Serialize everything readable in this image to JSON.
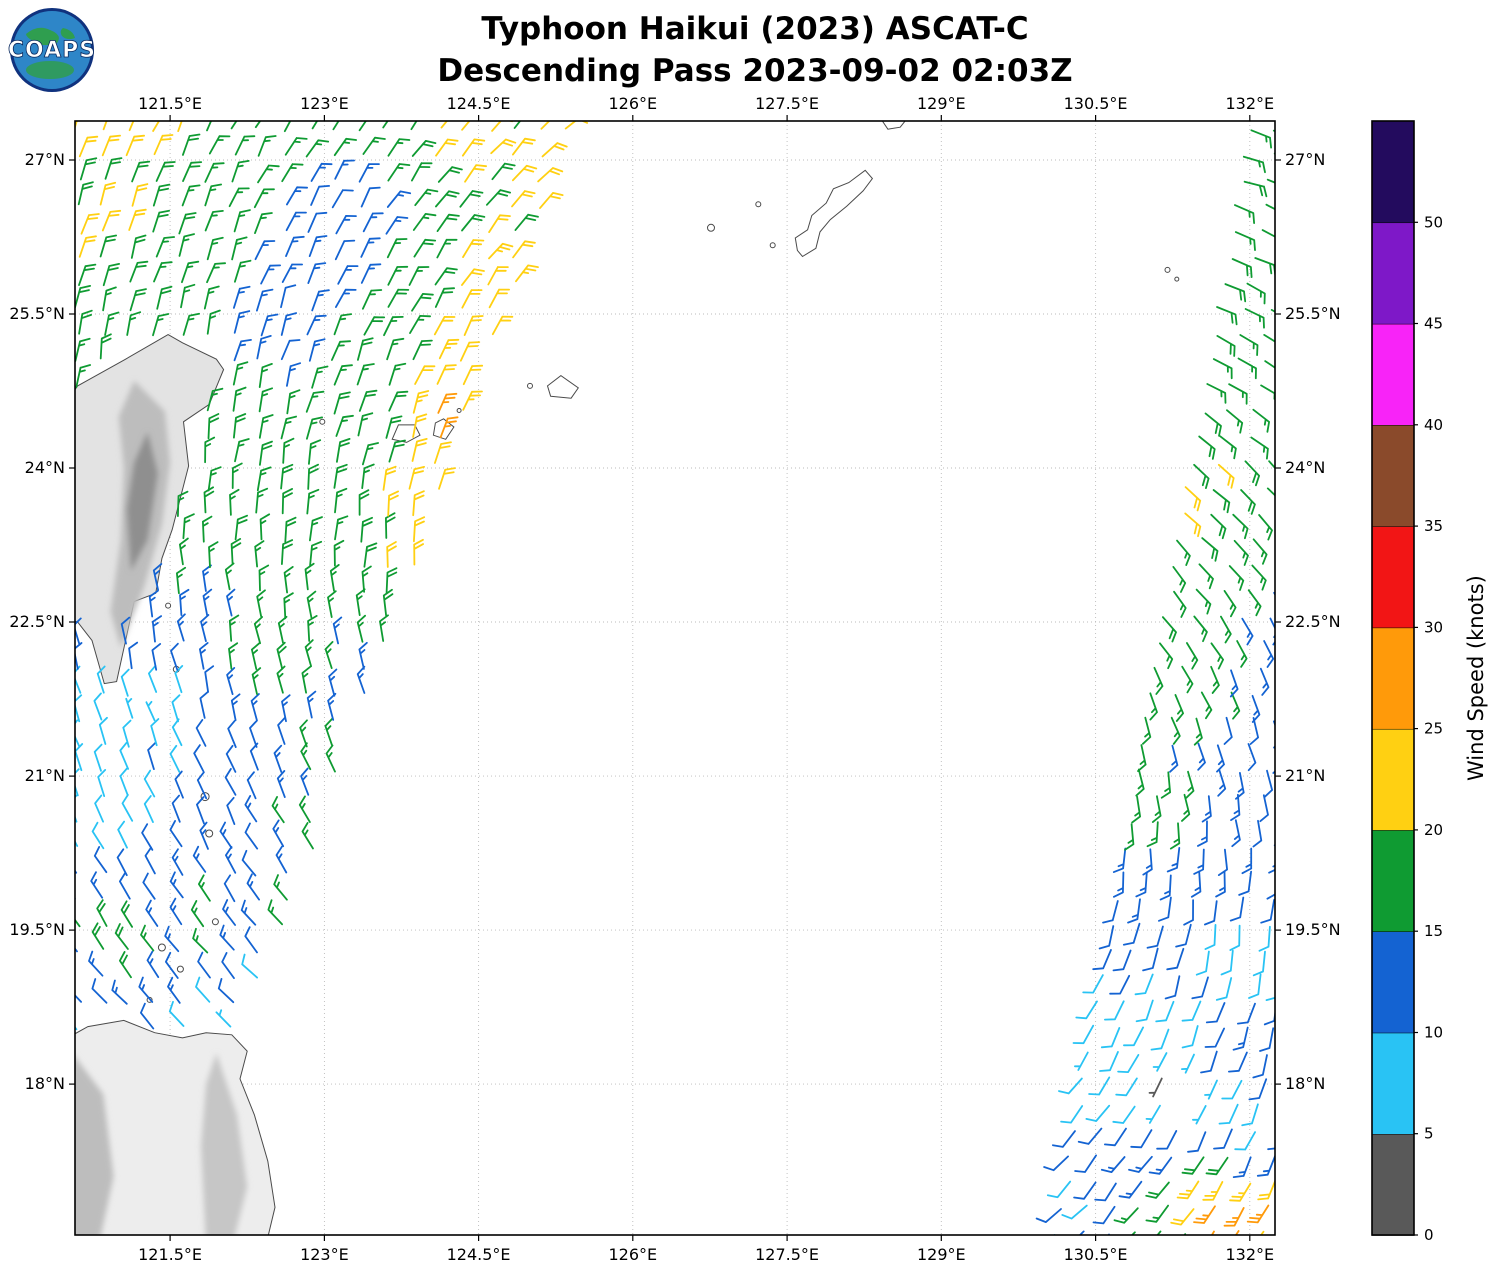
{
  "header": {
    "title_line1": "Typhoon Haikui (2023) ASCAT-C",
    "title_line2": "Descending Pass 2023-09-02 02:03Z"
  },
  "logo": {
    "text": "COAPS"
  },
  "map": {
    "extent": {
      "lon_min": 120.575,
      "lon_max": 132.245,
      "lat_min": 16.53,
      "lat_max": 27.38
    },
    "x_ticks": [
      {
        "lon": 121.5,
        "label": "121.5°E"
      },
      {
        "lon": 123.0,
        "label": "123°E"
      },
      {
        "lon": 124.5,
        "label": "124.5°E"
      },
      {
        "lon": 126.0,
        "label": "126°E"
      },
      {
        "lon": 127.5,
        "label": "127.5°E"
      },
      {
        "lon": 129.0,
        "label": "129°E"
      },
      {
        "lon": 130.5,
        "label": "130.5°E"
      },
      {
        "lon": 132.0,
        "label": "132°E"
      }
    ],
    "y_ticks": [
      {
        "lat": 27.0,
        "label": "27°N"
      },
      {
        "lat": 25.5,
        "label": "25.5°N"
      },
      {
        "lat": 24.0,
        "label": "24°N"
      },
      {
        "lat": 22.5,
        "label": "22.5°N"
      },
      {
        "lat": 21.0,
        "label": "21°N"
      },
      {
        "lat": 19.5,
        "label": "19.5°N"
      },
      {
        "lat": 18.0,
        "label": "18°N"
      }
    ],
    "grid_style": "dotted"
  },
  "colorbar": {
    "title": "Wind Speed (knots)",
    "tick_labels": [
      "0",
      "5",
      "10",
      "15",
      "20",
      "25",
      "30",
      "35",
      "40",
      "45",
      "50"
    ],
    "tick_values": [
      0,
      5,
      10,
      15,
      20,
      25,
      30,
      35,
      40,
      45,
      50
    ],
    "bounds": [
      0,
      5,
      10,
      15,
      20,
      25,
      30,
      35,
      40,
      45,
      50,
      55
    ],
    "colors": [
      "#595959",
      "#29c3f4",
      "#1463d2",
      "#0f9b32",
      "#ffd012",
      "#ff9a0a",
      "#f21515",
      "#8a4a2b",
      "#f823f8",
      "#7e18c8",
      "#230b5e"
    ]
  },
  "chart_data": {
    "type": "wind_barb_map",
    "instrument": "ASCAT-C",
    "pass_direction": "descending",
    "valid_time": "2023-09-02 02:03Z",
    "units": "knots",
    "grid_spacing_deg": 0.25,
    "barb_convention": "staff points toward wind source; full barb = 10 kt, half barb = 5 kt; color = speed",
    "cyclone": {
      "name": "Haikui",
      "center_lon": 127.8,
      "center_lat": 21.5,
      "rotation": "counterclockwise",
      "inflow_deg": 18
    },
    "swaths": [
      {
        "name": "west",
        "lat_min": 18.3,
        "lat_max": 27.35,
        "left_edge": {
          "base": 120.45,
          "slope": 0.0,
          "ref_lat": 19.5
        },
        "right_edge": {
          "base": 122.6,
          "slope": 0.36,
          "ref_lat": 19.5
        }
      },
      {
        "name": "east",
        "lat_min": 16.55,
        "lat_max": 27.3,
        "left_edge": {
          "base": 132.0,
          "slope": 0.175,
          "ref_lat": 27.2
        },
        "right_edge": {
          "base": 132.35,
          "slope": 0.0,
          "ref_lat": 27.2
        }
      }
    ],
    "speed_points": [
      [
        121.0,
        27.2,
        21
      ],
      [
        120.7,
        26.3,
        21
      ],
      [
        122.2,
        26.9,
        17
      ],
      [
        123.5,
        27.3,
        17
      ],
      [
        123.2,
        26.4,
        12
      ],
      [
        124.2,
        27.25,
        21
      ],
      [
        125.1,
        27.0,
        21
      ],
      [
        123.9,
        26.1,
        17
      ],
      [
        124.6,
        25.7,
        22
      ],
      [
        121.4,
        25.7,
        17
      ],
      [
        122.6,
        25.2,
        13
      ],
      [
        123.6,
        25.1,
        17
      ],
      [
        124.25,
        24.9,
        22
      ],
      [
        124.3,
        24.35,
        26
      ],
      [
        122.3,
        24.4,
        17
      ],
      [
        123.1,
        24.1,
        17
      ],
      [
        123.95,
        23.8,
        21
      ],
      [
        122.1,
        23.2,
        17
      ],
      [
        123.3,
        22.9,
        17
      ],
      [
        123.9,
        23.0,
        21
      ],
      [
        121.7,
        22.5,
        15
      ],
      [
        122.6,
        22.1,
        17
      ],
      [
        123.4,
        22.0,
        14
      ],
      [
        121.3,
        21.6,
        8
      ],
      [
        122.3,
        21.3,
        12
      ],
      [
        123.2,
        21.3,
        16
      ],
      [
        121.0,
        20.6,
        8
      ],
      [
        122.0,
        20.5,
        12
      ],
      [
        122.9,
        20.7,
        16
      ],
      [
        121.2,
        19.9,
        11
      ],
      [
        122.2,
        19.9,
        13
      ],
      [
        121.0,
        19.3,
        20
      ],
      [
        121.8,
        19.5,
        16
      ],
      [
        122.5,
        19.6,
        15
      ],
      [
        121.5,
        18.9,
        13
      ],
      [
        122.2,
        18.9,
        10
      ],
      [
        121.9,
        18.5,
        4
      ],
      [
        122.35,
        18.5,
        8
      ],
      [
        120.7,
        19.0,
        13
      ],
      [
        120.7,
        18.5,
        9
      ],
      [
        132.2,
        27.0,
        17
      ],
      [
        131.8,
        25.6,
        17
      ],
      [
        132.15,
        24.6,
        17
      ],
      [
        131.25,
        23.8,
        21
      ],
      [
        131.7,
        23.1,
        17
      ],
      [
        132.25,
        22.5,
        13
      ],
      [
        131.35,
        22.1,
        17
      ],
      [
        131.95,
        21.4,
        13
      ],
      [
        131.15,
        20.8,
        16
      ],
      [
        132.25,
        20.9,
        13
      ],
      [
        131.55,
        20.1,
        13
      ],
      [
        130.95,
        19.5,
        12
      ],
      [
        131.95,
        19.4,
        9
      ],
      [
        131.25,
        18.8,
        9
      ],
      [
        132.05,
        18.5,
        12
      ],
      [
        130.7,
        18.1,
        8
      ],
      [
        131.35,
        18.0,
        4
      ],
      [
        131.95,
        17.7,
        9
      ],
      [
        130.85,
        17.3,
        13
      ],
      [
        131.55,
        17.0,
        22
      ],
      [
        131.8,
        16.75,
        26
      ],
      [
        131.15,
        16.75,
        16
      ],
      [
        130.5,
        16.9,
        10
      ]
    ],
    "observed_speed_range_knots": [
      2,
      28
    ]
  },
  "geography": {
    "land": [
      {
        "name": "taiwan",
        "fill": "#e3e3e3",
        "points": [
          [
            120.05,
            23.4
          ],
          [
            120.18,
            24.2
          ],
          [
            120.6,
            24.8
          ],
          [
            121.05,
            25.05
          ],
          [
            121.48,
            25.3
          ],
          [
            121.62,
            25.22
          ],
          [
            121.95,
            25.06
          ],
          [
            122.02,
            24.96
          ],
          [
            121.88,
            24.62
          ],
          [
            121.63,
            24.45
          ],
          [
            121.68,
            24.02
          ],
          [
            121.52,
            23.4
          ],
          [
            121.42,
            23.12
          ],
          [
            121.36,
            22.78
          ],
          [
            121.15,
            22.7
          ],
          [
            120.98,
            21.92
          ],
          [
            120.86,
            21.9
          ],
          [
            120.74,
            22.32
          ],
          [
            120.6,
            22.5
          ],
          [
            120.34,
            22.56
          ],
          [
            120.12,
            23.0
          ]
        ],
        "relief": [
          {
            "fill": "#bdbdbd",
            "points": [
              [
                121.15,
                24.85
              ],
              [
                121.45,
                24.55
              ],
              [
                121.5,
                24.05
              ],
              [
                121.42,
                23.45
              ],
              [
                121.25,
                22.85
              ],
              [
                121.02,
                22.25
              ],
              [
                120.92,
                22.6
              ],
              [
                121.02,
                23.3
              ],
              [
                121.05,
                24.0
              ],
              [
                121.0,
                24.5
              ]
            ]
          },
          {
            "fill": "#8f8f8f",
            "points": [
              [
                121.28,
                24.35
              ],
              [
                121.38,
                23.95
              ],
              [
                121.28,
                23.3
              ],
              [
                121.12,
                23.0
              ],
              [
                121.08,
                23.6
              ],
              [
                121.15,
                24.05
              ]
            ]
          }
        ]
      },
      {
        "name": "luzon",
        "fill": "#ededed",
        "points": [
          [
            120.3,
            16.1
          ],
          [
            120.34,
            17.2
          ],
          [
            120.3,
            18.0
          ],
          [
            120.45,
            18.42
          ],
          [
            120.7,
            18.56
          ],
          [
            121.05,
            18.62
          ],
          [
            121.35,
            18.5
          ],
          [
            121.62,
            18.45
          ],
          [
            121.85,
            18.5
          ],
          [
            122.1,
            18.48
          ],
          [
            122.25,
            18.32
          ],
          [
            122.18,
            18.05
          ],
          [
            122.32,
            17.7
          ],
          [
            122.45,
            17.25
          ],
          [
            122.52,
            16.8
          ],
          [
            122.4,
            16.3
          ],
          [
            122.3,
            16.05
          ]
        ],
        "relief": [
          {
            "fill": "#c6c6c6",
            "points": [
              [
                121.95,
                18.3
              ],
              [
                122.15,
                17.7
              ],
              [
                122.25,
                17.0
              ],
              [
                122.1,
                16.4
              ],
              [
                121.85,
                16.4
              ],
              [
                121.8,
                17.4
              ],
              [
                121.85,
                18.0
              ]
            ]
          },
          {
            "fill": "#bdbdbd",
            "points": [
              [
                120.55,
                18.3
              ],
              [
                120.85,
                17.9
              ],
              [
                120.95,
                17.1
              ],
              [
                120.8,
                16.4
              ],
              [
                120.5,
                16.4
              ],
              [
                120.45,
                17.5
              ]
            ]
          }
        ]
      }
    ],
    "islands": [
      {
        "name": "okinawa",
        "points": [
          [
            127.65,
            26.06
          ],
          [
            127.78,
            26.14
          ],
          [
            127.82,
            26.3
          ],
          [
            127.92,
            26.42
          ],
          [
            128.08,
            26.55
          ],
          [
            128.24,
            26.7
          ],
          [
            128.33,
            26.82
          ],
          [
            128.26,
            26.9
          ],
          [
            128.1,
            26.78
          ],
          [
            127.95,
            26.72
          ],
          [
            127.88,
            26.58
          ],
          [
            127.74,
            26.46
          ],
          [
            127.7,
            26.32
          ],
          [
            127.58,
            26.24
          ],
          [
            127.6,
            26.12
          ]
        ]
      },
      {
        "name": "iriomote",
        "points": [
          [
            123.66,
            24.28
          ],
          [
            123.8,
            24.25
          ],
          [
            123.93,
            24.32
          ],
          [
            123.88,
            24.42
          ],
          [
            123.72,
            24.42
          ]
        ]
      },
      {
        "name": "ishigaki",
        "points": [
          [
            124.06,
            24.32
          ],
          [
            124.18,
            24.28
          ],
          [
            124.26,
            24.4
          ],
          [
            124.16,
            24.48
          ],
          [
            124.08,
            24.44
          ]
        ]
      },
      {
        "name": "miyako",
        "points": [
          [
            125.2,
            24.7
          ],
          [
            125.4,
            24.68
          ],
          [
            125.47,
            24.78
          ],
          [
            125.3,
            24.9
          ],
          [
            125.17,
            24.8
          ]
        ]
      },
      {
        "name": "amami-fragment",
        "points": [
          [
            128.4,
            27.42
          ],
          [
            128.48,
            27.3
          ],
          [
            128.6,
            27.32
          ],
          [
            128.68,
            27.42
          ]
        ]
      }
    ],
    "islets": [
      [
        121.84,
        20.8,
        4
      ],
      [
        121.88,
        20.44,
        3.5
      ],
      [
        121.42,
        19.33,
        3.5
      ],
      [
        121.6,
        19.12,
        3
      ],
      [
        121.94,
        19.58,
        3
      ],
      [
        121.3,
        18.82,
        2.5
      ],
      [
        121.48,
        22.66,
        2.5
      ],
      [
        121.56,
        22.04,
        3
      ],
      [
        122.98,
        24.45,
        2.5
      ],
      [
        124.31,
        24.56,
        2
      ],
      [
        125.0,
        24.8,
        2.5
      ],
      [
        126.76,
        26.34,
        3.5
      ],
      [
        127.22,
        26.57,
        2.5
      ],
      [
        127.36,
        26.17,
        2.5
      ],
      [
        131.2,
        25.93,
        2.5
      ],
      [
        131.29,
        25.84,
        2
      ]
    ]
  }
}
